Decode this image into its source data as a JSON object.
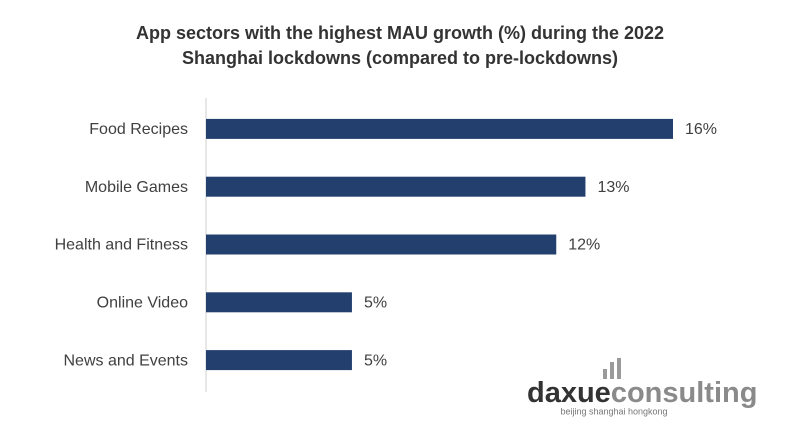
{
  "chart_data": {
    "type": "bar",
    "orientation": "horizontal",
    "title": [
      "App sectors with the highest MAU growth (%) during the 2022",
      "Shanghai lockdowns (compared to pre-lockdowns)"
    ],
    "categories": [
      "Food Recipes",
      "Mobile Games",
      "Health and Fitness",
      "Online Video",
      "News and Events"
    ],
    "values": [
      16,
      13,
      12,
      5,
      5
    ],
    "value_labels": [
      "16%",
      "13%",
      "12%",
      "5%",
      "5%"
    ],
    "color": "#223f6e",
    "xlim": [
      0,
      16
    ]
  },
  "logo": {
    "text": [
      "daxue",
      "consulting"
    ],
    "tagline": "beijing shanghai hongkong"
  }
}
